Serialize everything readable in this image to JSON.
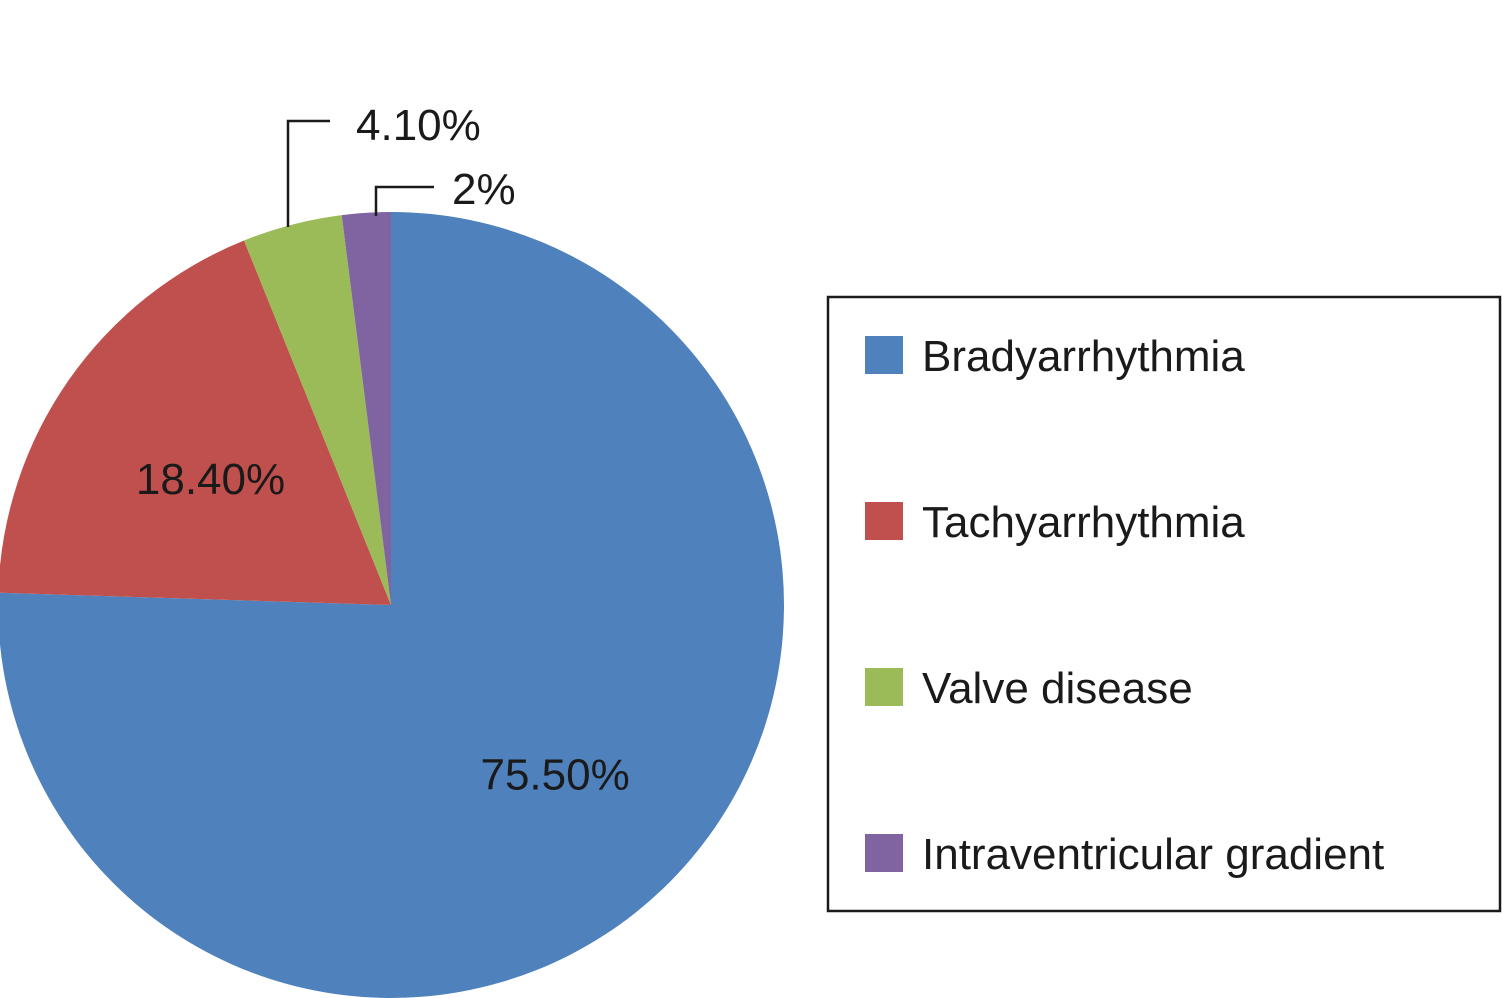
{
  "chart_data": {
    "type": "pie",
    "title": "",
    "start_angle_deg": 0,
    "direction": "clockwise",
    "legend": {
      "placement": "right"
    },
    "slices": [
      {
        "name": "Bradyarrhythmia",
        "value": 75.5,
        "label": "75.50%",
        "color": "#4F81BD",
        "callout": false
      },
      {
        "name": "Tachyarrhythmia",
        "value": 18.4,
        "label": "18.40%",
        "color": "#C0504D",
        "callout": false
      },
      {
        "name": "Valve disease",
        "value": 4.1,
        "label": "4.10%",
        "color": "#9BBB59",
        "callout": true
      },
      {
        "name": "Intraventricular gradient",
        "value": 2,
        "label": "2%",
        "color": "#8064A2",
        "callout": true
      }
    ]
  }
}
